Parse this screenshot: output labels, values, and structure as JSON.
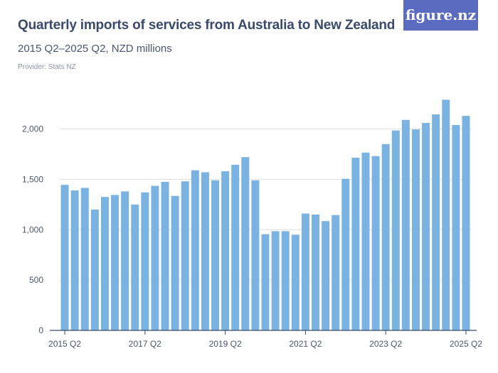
{
  "header": {
    "title": "Quarterly imports of services from Australia to New Zealand",
    "subtitle": "2015 Q2–2025 Q2, NZD millions",
    "provider": "Provider: Stats NZ",
    "logo": "figure.nz"
  },
  "colors": {
    "bar": "#7ab3e2",
    "grid": "#dddddd",
    "axis": "#3a4a6b",
    "logo_bg": "#5b6bbf"
  },
  "chart_data": {
    "type": "bar",
    "title": "Quarterly imports of services from Australia to New Zealand",
    "xlabel": "",
    "ylabel": "NZD millions",
    "ylim": [
      0,
      2300
    ],
    "yticks": [
      0,
      500,
      1000,
      1500,
      2000
    ],
    "ytick_labels": [
      "0",
      "500",
      "1,000",
      "1,500",
      "2,000"
    ],
    "xtick_labels": [
      "2015 Q2",
      "2017 Q2",
      "2019 Q2",
      "2021 Q2",
      "2023 Q2",
      "2025 Q2"
    ],
    "xtick_indices": [
      0,
      8,
      16,
      24,
      32,
      40
    ],
    "categories": [
      "2015 Q2",
      "2015 Q3",
      "2015 Q4",
      "2016 Q1",
      "2016 Q2",
      "2016 Q3",
      "2016 Q4",
      "2017 Q1",
      "2017 Q2",
      "2017 Q3",
      "2017 Q4",
      "2018 Q1",
      "2018 Q2",
      "2018 Q3",
      "2018 Q4",
      "2019 Q1",
      "2019 Q2",
      "2019 Q3",
      "2019 Q4",
      "2020 Q1",
      "2020 Q2",
      "2020 Q3",
      "2020 Q4",
      "2021 Q1",
      "2021 Q2",
      "2021 Q3",
      "2021 Q4",
      "2022 Q1",
      "2022 Q2",
      "2022 Q3",
      "2022 Q4",
      "2023 Q1",
      "2023 Q2",
      "2023 Q3",
      "2023 Q4",
      "2024 Q1",
      "2024 Q2",
      "2024 Q3",
      "2024 Q4",
      "2025 Q1",
      "2025 Q2"
    ],
    "values": [
      1445,
      1390,
      1415,
      1200,
      1325,
      1345,
      1380,
      1250,
      1370,
      1435,
      1475,
      1335,
      1480,
      1590,
      1570,
      1490,
      1580,
      1645,
      1720,
      1490,
      955,
      985,
      985,
      950,
      1160,
      1150,
      1085,
      1145,
      1505,
      1715,
      1765,
      1730,
      1850,
      1985,
      2090,
      1995,
      2060,
      2145,
      2290,
      2040,
      2130
    ]
  }
}
